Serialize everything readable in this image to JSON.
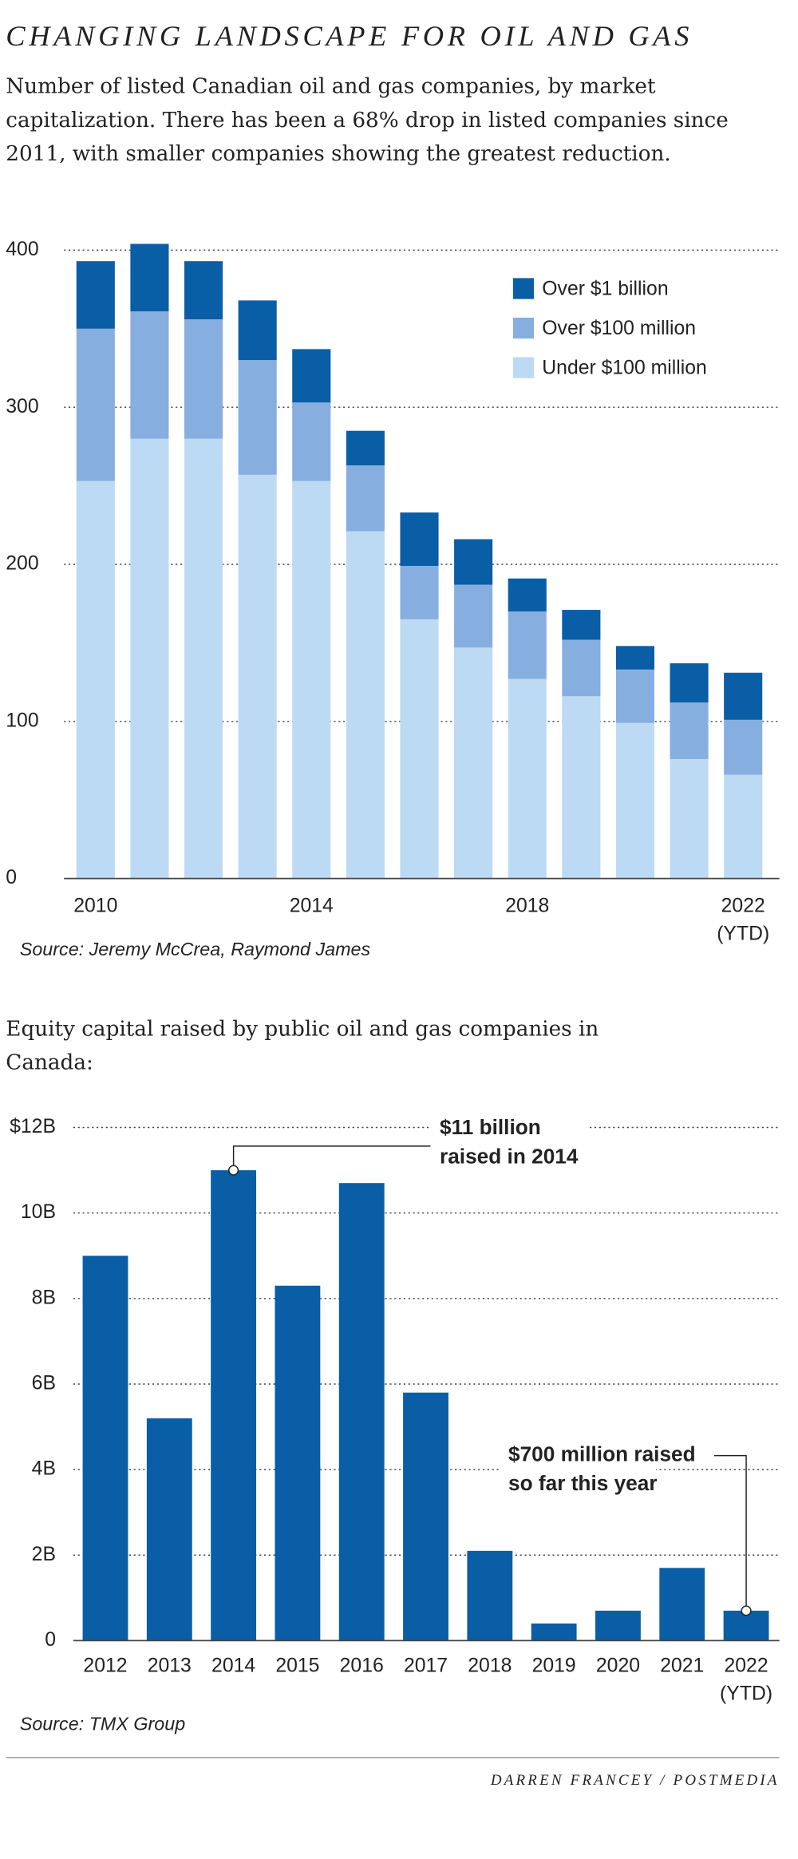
{
  "header": {
    "title": "CHANGING LANDSCAPE FOR OIL AND GAS",
    "credit": "DARREN FRANCEY / POSTMEDIA"
  },
  "chart_data": [
    {
      "type": "stacked_bar",
      "subtitle": "Number of listed Canadian oil and gas companies, by market capitalization. There has been a 68% drop in listed companies since 2011, with smaller companies showing the greatest reduction.",
      "source": "Source: Jeremy McCrea, Raymond James",
      "categories": [
        "2010",
        null,
        null,
        null,
        "2014",
        null,
        null,
        null,
        "2018",
        null,
        null,
        null,
        "2022 (YTD)"
      ],
      "series": [
        {
          "name": "Under $100 million",
          "color": "#bcdaf3",
          "values": [
            253,
            280,
            280,
            257,
            253,
            221,
            165,
            147,
            127,
            116,
            99,
            76,
            66
          ]
        },
        {
          "name": "Over $100 million",
          "color": "#86afe0",
          "values": [
            97,
            81,
            76,
            73,
            50,
            42,
            34,
            40,
            43,
            36,
            34,
            36,
            35
          ]
        },
        {
          "name": "Over $1 billion",
          "color": "#0a5ea6",
          "values": [
            43,
            43,
            37,
            38,
            34,
            22,
            34,
            29,
            21,
            19,
            15,
            25,
            30
          ]
        }
      ],
      "ylim": [
        0,
        400
      ],
      "yticks": [
        0,
        100,
        200,
        300,
        400
      ],
      "grid": true,
      "legend": "top-right"
    },
    {
      "type": "bar",
      "subtitle": "Equity capital raised by public oil and gas companies in Canada:",
      "source": "Source: TMX Group",
      "categories": [
        "2012",
        "2013",
        "2014",
        "2015",
        "2016",
        "2017",
        "2018",
        "2019",
        "2020",
        "2021",
        "2022 (YTD)"
      ],
      "values": [
        9,
        5.2,
        11,
        8.3,
        10.7,
        5.8,
        2.1,
        0.4,
        0.7,
        1.7,
        0.7
      ],
      "color": "#0a5ea6",
      "ylim": [
        0,
        12
      ],
      "yticks": [
        0,
        {
          "value": 2,
          "label": "2B"
        },
        {
          "value": 4,
          "label": "4B"
        },
        {
          "value": 6,
          "label": "6B"
        },
        {
          "value": 8,
          "label": "8B"
        },
        {
          "value": 10,
          "label": "10B"
        },
        {
          "value": 12,
          "label": "$12B"
        }
      ],
      "grid": true,
      "annotations": [
        {
          "category": "2014",
          "text": [
            "$11 billion",
            "raised in 2014"
          ]
        },
        {
          "category": "2022 (YTD)",
          "text": [
            "$700 million raised",
            "so far this year"
          ]
        }
      ]
    }
  ]
}
